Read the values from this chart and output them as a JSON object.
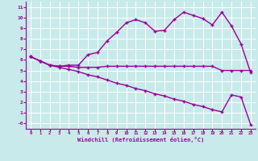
{
  "xlabel": "Windchill (Refroidissement éolien,°C)",
  "background_color": "#c8eaea",
  "line_color": "#990099",
  "grid_color": "#ffffff",
  "xlim": [
    -0.5,
    23.5
  ],
  "ylim": [
    -0.5,
    11.5
  ],
  "xticks": [
    0,
    1,
    2,
    3,
    4,
    5,
    6,
    7,
    8,
    9,
    10,
    11,
    12,
    13,
    14,
    15,
    16,
    17,
    18,
    19,
    20,
    21,
    22,
    23
  ],
  "yticks": [
    0,
    1,
    2,
    3,
    4,
    5,
    6,
    7,
    8,
    9,
    10,
    11
  ],
  "ytick_labels": [
    "-0",
    "1",
    "2",
    "3",
    "4",
    "5",
    "6",
    "7",
    "8",
    "9",
    "10",
    "11"
  ],
  "line1_x": [
    0,
    1,
    2,
    3,
    4,
    5,
    6,
    7,
    8,
    9,
    10,
    11,
    12,
    13,
    14,
    15,
    16,
    17,
    18,
    19,
    20,
    21,
    22,
    23
  ],
  "line1_y": [
    6.3,
    5.9,
    5.5,
    5.4,
    5.5,
    5.5,
    6.5,
    6.7,
    7.8,
    8.6,
    9.5,
    9.8,
    9.5,
    8.7,
    8.8,
    9.8,
    10.5,
    10.2,
    9.9,
    9.3,
    10.5,
    9.2,
    7.5,
    4.8
  ],
  "line2_x": [
    0,
    1,
    2,
    3,
    4,
    5,
    6,
    7,
    8,
    9,
    10,
    11,
    12,
    13,
    14,
    15,
    16,
    17,
    18,
    19,
    20,
    21,
    22,
    23
  ],
  "line2_y": [
    6.3,
    5.9,
    5.5,
    5.4,
    5.4,
    5.3,
    5.3,
    5.3,
    5.4,
    5.4,
    5.4,
    5.4,
    5.4,
    5.4,
    5.4,
    5.4,
    5.4,
    5.4,
    5.4,
    5.4,
    5.0,
    5.0,
    5.0,
    5.0
  ],
  "line3_x": [
    0,
    1,
    2,
    3,
    4,
    5,
    6,
    7,
    8,
    9,
    10,
    11,
    12,
    13,
    14,
    15,
    16,
    17,
    18,
    19,
    20,
    21,
    22,
    23
  ],
  "line3_y": [
    6.3,
    5.9,
    5.5,
    5.3,
    5.1,
    4.9,
    4.6,
    4.4,
    4.1,
    3.8,
    3.6,
    3.3,
    3.1,
    2.8,
    2.6,
    2.3,
    2.1,
    1.8,
    1.6,
    1.3,
    1.1,
    2.7,
    2.5,
    -0.1
  ]
}
